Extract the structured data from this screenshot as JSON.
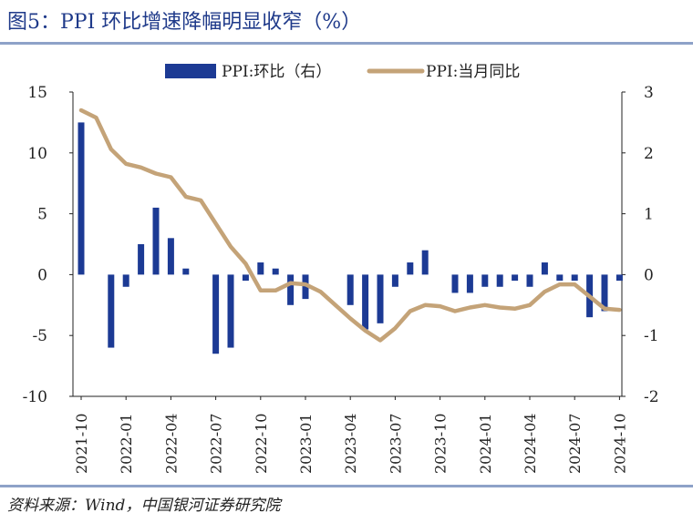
{
  "title": "图5：PPI 环比增速降幅明显收窄（%）",
  "source": "资料来源：Wind，中国银河证券研究院",
  "colors": {
    "bar": "#1c3a94",
    "line": "#c4a378",
    "rule": "#8ea2c8",
    "title": "#1f3a8a"
  },
  "chart_data": {
    "type": "bar+line",
    "legend_position": "top",
    "grid": false,
    "left_axis": {
      "range": [
        -10,
        15
      ],
      "ticks": [
        "15",
        "10",
        "5",
        "0",
        "-5",
        "-10"
      ],
      "tick_values": [
        15,
        10,
        5,
        0,
        -5,
        -10
      ]
    },
    "right_axis": {
      "range": [
        -2,
        3
      ],
      "ticks": [
        "3",
        "2",
        "1",
        "0",
        "-1",
        "-2"
      ],
      "tick_values": [
        3,
        2,
        1,
        0,
        -1,
        -2
      ]
    },
    "x_tick_labels": [
      "2021-10",
      "2022-01",
      "2022-04",
      "2022-07",
      "2022-10",
      "2023-01",
      "2023-04",
      "2023-07",
      "2023-10",
      "2024-01",
      "2024-04",
      "2024-07",
      "2024-10"
    ],
    "categories": [
      "2021-10",
      "2021-11",
      "2021-12",
      "2022-01",
      "2022-02",
      "2022-03",
      "2022-04",
      "2022-05",
      "2022-06",
      "2022-07",
      "2022-08",
      "2022-09",
      "2022-10",
      "2022-11",
      "2022-12",
      "2023-01",
      "2023-02",
      "2023-03",
      "2023-04",
      "2023-05",
      "2023-06",
      "2023-07",
      "2023-08",
      "2023-09",
      "2023-10",
      "2023-11",
      "2023-12",
      "2024-01",
      "2024-02",
      "2024-03",
      "2024-04",
      "2024-05",
      "2024-06",
      "2024-07",
      "2024-08",
      "2024-09",
      "2024-10"
    ],
    "series": [
      {
        "name": "PPI:环比（右）",
        "kind": "bar",
        "axis": "right",
        "values": [
          2.5,
          0.0,
          -1.2,
          -0.2,
          0.5,
          1.1,
          0.6,
          0.1,
          0.0,
          -1.3,
          -1.2,
          -0.1,
          0.2,
          0.1,
          -0.5,
          -0.4,
          0.0,
          0.0,
          -0.5,
          -0.9,
          -0.8,
          -0.2,
          0.2,
          0.4,
          0.0,
          -0.3,
          -0.3,
          -0.2,
          -0.2,
          -0.1,
          -0.2,
          0.2,
          -0.1,
          -0.1,
          -0.7,
          -0.6,
          -0.1
        ]
      },
      {
        "name": "PPI:当月同比",
        "kind": "line",
        "axis": "left",
        "values": [
          13.5,
          12.9,
          10.3,
          9.1,
          8.8,
          8.3,
          8.0,
          6.4,
          6.1,
          4.2,
          2.3,
          0.9,
          -1.3,
          -1.3,
          -0.7,
          -0.8,
          -1.4,
          -2.5,
          -3.6,
          -4.6,
          -5.4,
          -4.4,
          -3.0,
          -2.5,
          -2.6,
          -3.0,
          -2.7,
          -2.5,
          -2.7,
          -2.8,
          -2.5,
          -1.4,
          -0.8,
          -0.8,
          -1.8,
          -2.8,
          -2.9
        ]
      }
    ]
  }
}
